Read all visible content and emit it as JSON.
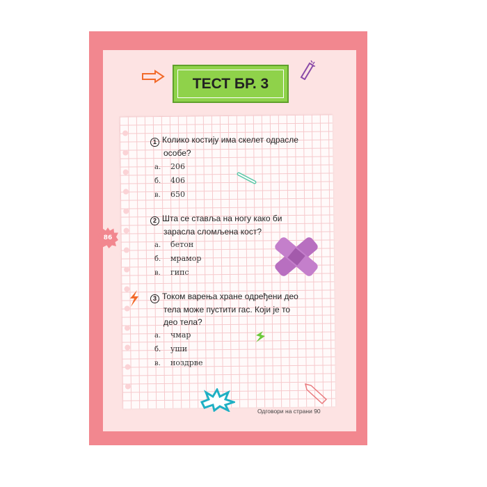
{
  "title": "ТЕСТ БР. 3",
  "page_number": "86",
  "questions": [
    {
      "number": "1",
      "line1": "Колико костију има скелет одрасле",
      "line2": "особе?",
      "line3": "",
      "options": [
        {
          "letter": "а.",
          "text": "206"
        },
        {
          "letter": "б.",
          "text": "406"
        },
        {
          "letter": "в.",
          "text": "650"
        }
      ]
    },
    {
      "number": "2",
      "line1": "Шта се ставља на ногу како би",
      "line2": "зарасла сломљена кост?",
      "line3": "",
      "options": [
        {
          "letter": "а.",
          "text": "бетон"
        },
        {
          "letter": "б.",
          "text": "мрамор"
        },
        {
          "letter": "в.",
          "text": "гипс"
        }
      ]
    },
    {
      "number": "3",
      "line1": "Током варења хране одређени део",
      "line2": "тела може пустити гас. Који је то",
      "line3": "део тела?",
      "options": [
        {
          "letter": "а.",
          "text": "чмар"
        },
        {
          "letter": "б.",
          "text": "уши"
        },
        {
          "letter": "в.",
          "text": "ноздрве"
        }
      ]
    }
  ],
  "footer": "Одговори на страни 90",
  "colors": {
    "page": "#f2878f",
    "inner": "#fde3e3",
    "banner": "#8fd24a",
    "bandage": "#b86fc0",
    "bone": "#5cc8a8",
    "star": "#1fb0c4"
  },
  "decorations": [
    "arrow-icon",
    "pencil-icon",
    "bone-icon",
    "bandage-icon",
    "lightning-icon",
    "burst-icon"
  ]
}
